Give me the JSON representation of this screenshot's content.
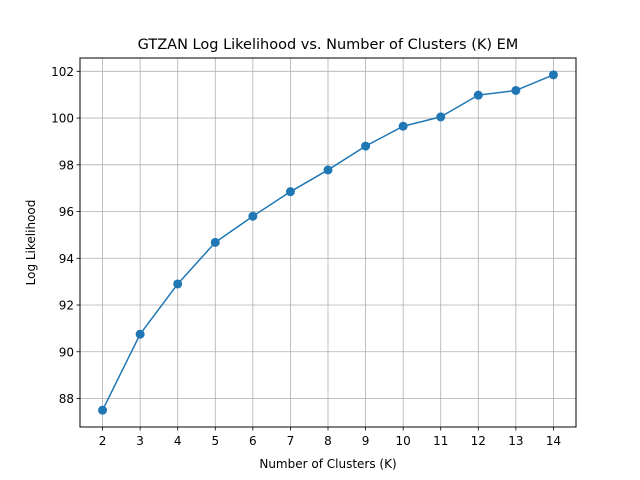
{
  "chart_data": {
    "type": "line",
    "title": "GTZAN Log Likelihood vs. Number of Clusters (K) EM",
    "xlabel": "Number of Clusters (K)",
    "ylabel": "Log Likelihood",
    "x": [
      2,
      3,
      4,
      5,
      6,
      7,
      8,
      9,
      10,
      11,
      12,
      13,
      14
    ],
    "series": [
      {
        "values": [
          87.5,
          90.75,
          92.9,
          94.68,
          95.8,
          96.85,
          97.78,
          98.8,
          99.65,
          100.05,
          100.98,
          101.18,
          101.85
        ]
      }
    ],
    "xticks": [
      2,
      3,
      4,
      5,
      6,
      7,
      8,
      9,
      10,
      11,
      12,
      13,
      14
    ],
    "yticks": [
      88,
      90,
      92,
      94,
      96,
      98,
      100,
      102
    ],
    "xlim": [
      1.4,
      14.6
    ],
    "ylim": [
      86.78,
      102.57
    ],
    "grid": true,
    "line_color": "#1f77b4",
    "marker": "circle"
  }
}
